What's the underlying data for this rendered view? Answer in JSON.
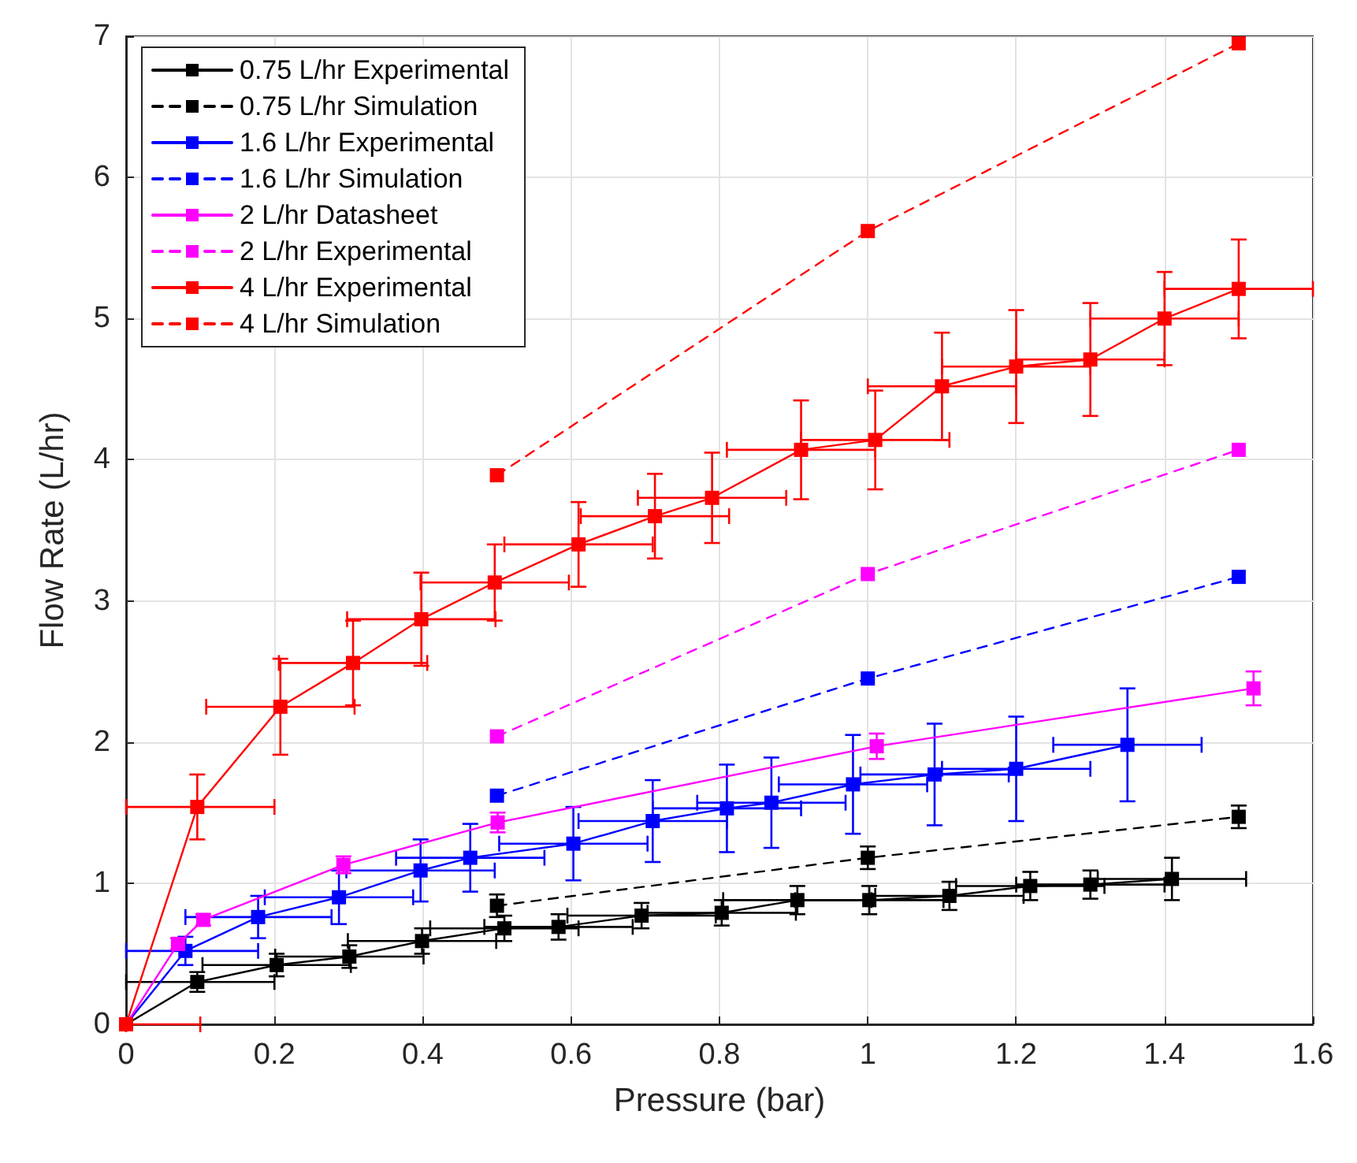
{
  "chart_data": {
    "type": "line",
    "xlabel": "Pressure (bar)",
    "ylabel": "Flow Rate (L/hr)",
    "xlim": [
      0,
      1.6
    ],
    "xticks": [
      0,
      0.2,
      0.4,
      0.6,
      0.8,
      1,
      1.2,
      1.4,
      1.6
    ],
    "ylim": [
      0,
      7
    ],
    "yticks": [
      0,
      1,
      2,
      3,
      4,
      5,
      6,
      7
    ],
    "grid": true,
    "legend": "top left",
    "marker": "square",
    "series": [
      {
        "name": "0.75 L/hr Experimental",
        "color": "#000000",
        "line_style": "solid",
        "x": [
          0,
          0.096,
          0.203,
          0.301,
          0.399,
          0.51,
          0.583,
          0.695,
          0.803,
          0.905,
          1.002,
          1.11,
          1.219,
          1.3,
          1.41
        ],
        "values": [
          0,
          0.3,
          0.42,
          0.48,
          0.59,
          0.68,
          0.69,
          0.77,
          0.79,
          0.88,
          0.88,
          0.91,
          0.98,
          0.99,
          1.03
        ],
        "errors": [
          null,
          0.07,
          0.08,
          0.08,
          0.09,
          0.09,
          0.09,
          0.09,
          0.09,
          0.1,
          0.1,
          0.1,
          0.1,
          0.1,
          0.15
        ],
        "xerrors": [
          null,
          [
            0,
            0.2
          ],
          0.1,
          0.1,
          0.1,
          0.1,
          0.1,
          0.1,
          0.1,
          0.1,
          0.1,
          0.1,
          0.1,
          0.1,
          0.1
        ]
      },
      {
        "name": "0.75 L/hr Simulation",
        "color": "#000000",
        "line_style": "dashed",
        "x": [
          0.5,
          1,
          1.5
        ],
        "values": [
          0.84,
          1.18,
          1.47
        ],
        "errors": [
          0.08,
          0.08,
          0.08
        ]
      },
      {
        "name": "1.6 L/hr Experimental",
        "color": "#0000ff",
        "line_style": "solid",
        "x": [
          0,
          0.08,
          0.178,
          0.287,
          0.397,
          0.464,
          0.603,
          0.71,
          0.81,
          0.87,
          0.98,
          1.09,
          1.2,
          1.35
        ],
        "values": [
          0,
          0.52,
          0.76,
          0.9,
          1.09,
          1.18,
          1.28,
          1.44,
          1.53,
          1.57,
          1.7,
          1.77,
          1.81,
          1.98
        ],
        "errors": [
          null,
          0.1,
          0.15,
          0.19,
          0.22,
          0.24,
          0.26,
          0.29,
          0.31,
          0.32,
          0.35,
          0.36,
          0.37,
          0.4
        ],
        "xerrors": [
          null,
          [
            0,
            0.178
          ],
          [
            0.08,
            0.277
          ],
          0.1,
          0.1,
          0.1,
          0.1,
          0.1,
          0.1,
          0.1,
          0.1,
          0.1,
          0.1,
          0.1
        ]
      },
      {
        "name": "1.6 L/hr Simulation",
        "color": "#0000ff",
        "line_style": "dashed",
        "x": [
          0.5,
          1,
          1.5
        ],
        "values": [
          1.62,
          2.45,
          3.17
        ]
      },
      {
        "name": "2 L/hr Datasheet",
        "color": "#ff00ff",
        "line_style": "solid",
        "x": [
          0,
          0.07,
          0.104,
          0.293,
          0.501,
          1.012,
          1.52
        ],
        "values": [
          0,
          0.57,
          0.74,
          1.13,
          1.43,
          1.97,
          2.38
        ],
        "errors": [
          null,
          0.04,
          0.04,
          0.06,
          0.07,
          0.09,
          0.12
        ]
      },
      {
        "name": "2 L/hr Experimental",
        "color": "#ff00ff",
        "line_style": "dashed",
        "x": [
          0.5,
          1,
          1.5
        ],
        "values": [
          2.04,
          3.19,
          4.07
        ]
      },
      {
        "name": "4 L/hr Experimental",
        "color": "#ff0000",
        "line_style": "solid",
        "x": [
          0,
          0.096,
          0.208,
          0.306,
          0.398,
          0.497,
          0.61,
          0.713,
          0.79,
          0.91,
          1.01,
          1.1,
          1.2,
          1.3,
          1.4,
          1.5
        ],
        "values": [
          0,
          1.54,
          2.25,
          2.56,
          2.87,
          3.13,
          3.4,
          3.6,
          3.73,
          4.07,
          4.14,
          4.52,
          4.66,
          4.71,
          5,
          5.21
        ],
        "errors": [
          null,
          0.23,
          0.34,
          0.3,
          0.33,
          0.27,
          0.3,
          0.3,
          0.32,
          0.35,
          0.35,
          0.38,
          0.4,
          0.4,
          0.33,
          0.35
        ],
        "xerrors": [
          [
            0,
            0.1
          ],
          [
            0,
            0.2
          ],
          0.1,
          0.1,
          0.1,
          0.1,
          0.1,
          0.1,
          0.1,
          0.1,
          0.1,
          0.1,
          0.1,
          0.1,
          0.1,
          0.1
        ]
      },
      {
        "name": "4 L/hr Simulation",
        "color": "#ff0000",
        "line_style": "dashed",
        "x": [
          0.5,
          1,
          1.5
        ],
        "values": [
          3.89,
          5.62,
          6.95
        ]
      }
    ]
  }
}
